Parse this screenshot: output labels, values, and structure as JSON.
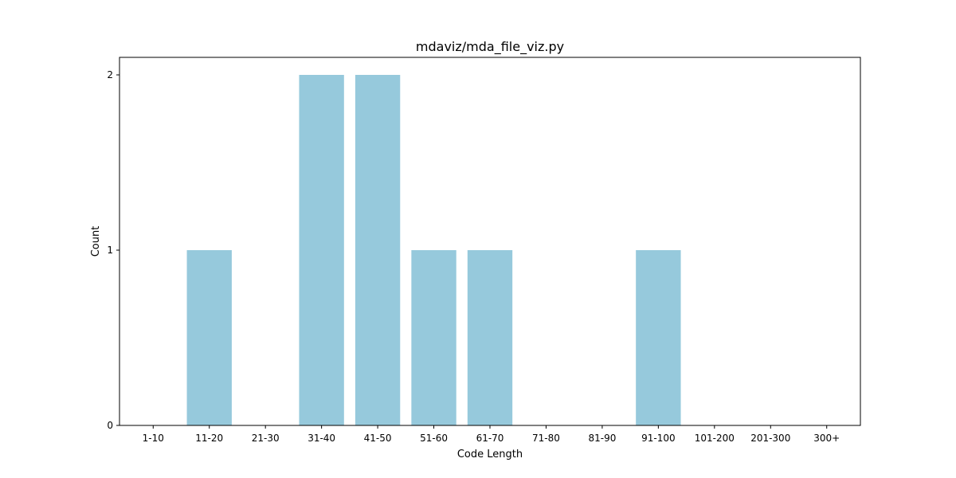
{
  "chart_data": {
    "type": "bar",
    "title": "mdaviz/mda_file_viz.py",
    "xlabel": "Code Length",
    "ylabel": "Count",
    "categories": [
      "1-10",
      "11-20",
      "21-30",
      "31-40",
      "41-50",
      "51-60",
      "61-70",
      "71-80",
      "81-90",
      "91-100",
      "101-200",
      "201-300",
      "300+"
    ],
    "values": [
      0,
      1,
      0,
      2,
      2,
      1,
      1,
      0,
      0,
      1,
      0,
      0,
      0
    ],
    "ylim": [
      0,
      2.1
    ],
    "yticks": [
      0,
      1,
      2
    ],
    "bar_color": "#96c9dc",
    "grid": false,
    "legend": "none"
  }
}
